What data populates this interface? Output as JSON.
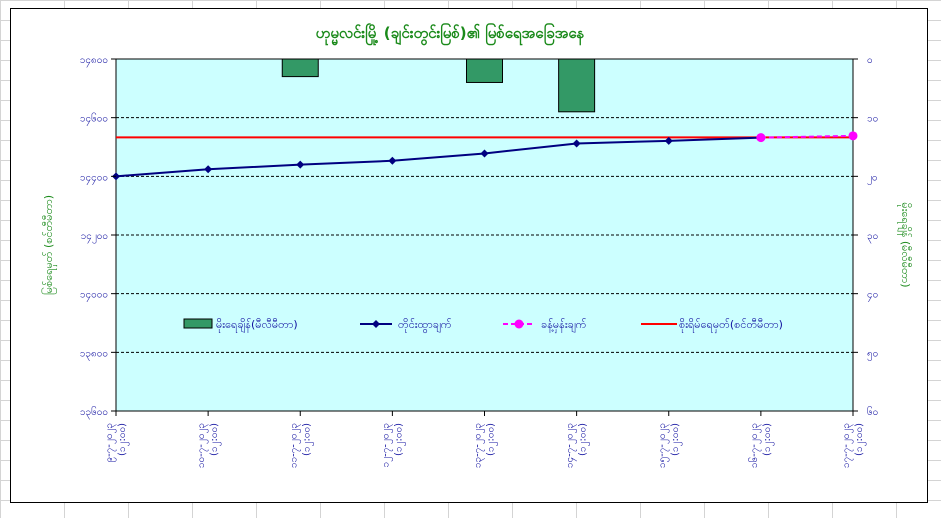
{
  "chart_data": {
    "type": "bar+line",
    "title": "ဟုမ္မလင်းမြို့ (ချင်းတွင်းမြစ်)၏ မြစ်ရေအခြေအနေ",
    "ylabel_left": "မြစ်ရေမှတ် (စင်တီမီတာ)",
    "ylabel_right": "မိုးရေချိန် (မီလီမီတာ)",
    "left_axis": {
      "min": 13600,
      "max": 14800,
      "ticks": [
        "၁၃၆၀၀",
        "၁၃၈၀၀",
        "၁၄၀၀၀",
        "၁၄၂၀၀",
        "၁၄၄၀၀",
        "၁၄၆၀၀",
        "၁၄၈၀၀"
      ],
      "values": [
        13600,
        13800,
        14000,
        14200,
        14400,
        14600,
        14800
      ]
    },
    "right_axis": {
      "min": 0,
      "max": 60,
      "reversed": true,
      "ticks": [
        "၀",
        "၁၀",
        "၂၀",
        "၃၀",
        "၄၀",
        "၅၀",
        "၆၀"
      ],
      "values": [
        0,
        10,
        20,
        30,
        40,
        50,
        60
      ]
    },
    "categories": [
      [
        "၉-၇-၂၀၂၃",
        "(၁၂:၀၀)"
      ],
      [
        "၁၀-၇-၂၀၂၃",
        "(၁၂:၀၀)"
      ],
      [
        "၁၁-၇-၂၀၂၃",
        "(၁၂:၀၀)"
      ],
      [
        "၁၂-၇-၂၀၂၃",
        "(၁၂:၀၀)"
      ],
      [
        "၁၃-၇-၂၀၂၃",
        "(၁၂:၀၀)"
      ],
      [
        "၁၄-၇-၂၀၂၃",
        "(၁၂:၀၀)"
      ],
      [
        "၁၅-၇-၂၀၂၃",
        "(၁၂:၀၀)"
      ],
      [
        "၁၆-၇-၂၀၂၃",
        "(၁၂:၀၀)"
      ],
      [
        "၁၇-၇-၂၀၂၃",
        "(၁၂:၀၀)"
      ]
    ],
    "series": [
      {
        "name": "မိုးရေချိန်(မီလီမီတာ)",
        "kind": "bar",
        "axis": "right",
        "color": "#339966",
        "values": [
          null,
          null,
          3,
          null,
          4,
          9,
          null,
          null,
          null
        ]
      },
      {
        "name": "တိုင်းထွာချက်",
        "kind": "line",
        "axis": "left",
        "color": "#000080",
        "values": [
          14400,
          14424,
          14440,
          14453,
          14478,
          14512,
          14521,
          14532,
          null
        ]
      },
      {
        "name": "ခန့်မှန်းချက်",
        "kind": "line-dashed",
        "axis": "left",
        "color": "#ff00ff",
        "values": [
          null,
          null,
          null,
          null,
          null,
          null,
          null,
          14532,
          14538
        ]
      },
      {
        "name": "စိုးရိမ်ရေမှတ်(စင်တီမီတာ)",
        "kind": "hline",
        "axis": "left",
        "color": "#ff0000",
        "value": 14533
      }
    ],
    "grid": true,
    "legend": "middle"
  }
}
